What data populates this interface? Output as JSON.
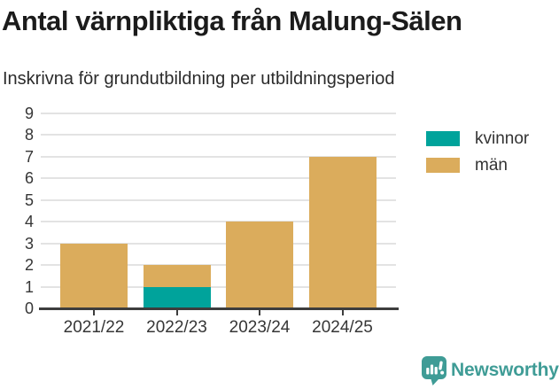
{
  "header": {
    "title": "Antal värnpliktiga från Malung-Sälen",
    "subtitle": "Inskrivna för grundutbildning per utbildningsperiod"
  },
  "chart_data": {
    "type": "bar",
    "stacked": true,
    "title": "Antal värnpliktiga från Malung-Sälen",
    "subtitle": "Inskrivna för grundutbildning per utbildningsperiod",
    "categories": [
      "2021/22",
      "2022/23",
      "2023/24",
      "2024/25"
    ],
    "series": [
      {
        "name": "kvinnor",
        "color": "#00A39B",
        "values": [
          0,
          1,
          0,
          0
        ]
      },
      {
        "name": "män",
        "color": "#DBAC5C",
        "values": [
          3,
          1,
          4,
          7
        ]
      }
    ],
    "totals": [
      3,
      2,
      4,
      7
    ],
    "xlabel": "",
    "ylabel": "",
    "ylim": [
      0,
      9
    ],
    "yticks": [
      0,
      1,
      2,
      3,
      4,
      5,
      6,
      7,
      8,
      9
    ],
    "grid": true,
    "legend_position": "top-right",
    "colors": {
      "grid": "#e3e3e3",
      "axis": "#3d3d3d",
      "text": "#363636"
    }
  },
  "branding": {
    "name": "Newsworthy",
    "icon": "bar-chart-speech-bubble-icon",
    "color": "#3F9C96"
  }
}
